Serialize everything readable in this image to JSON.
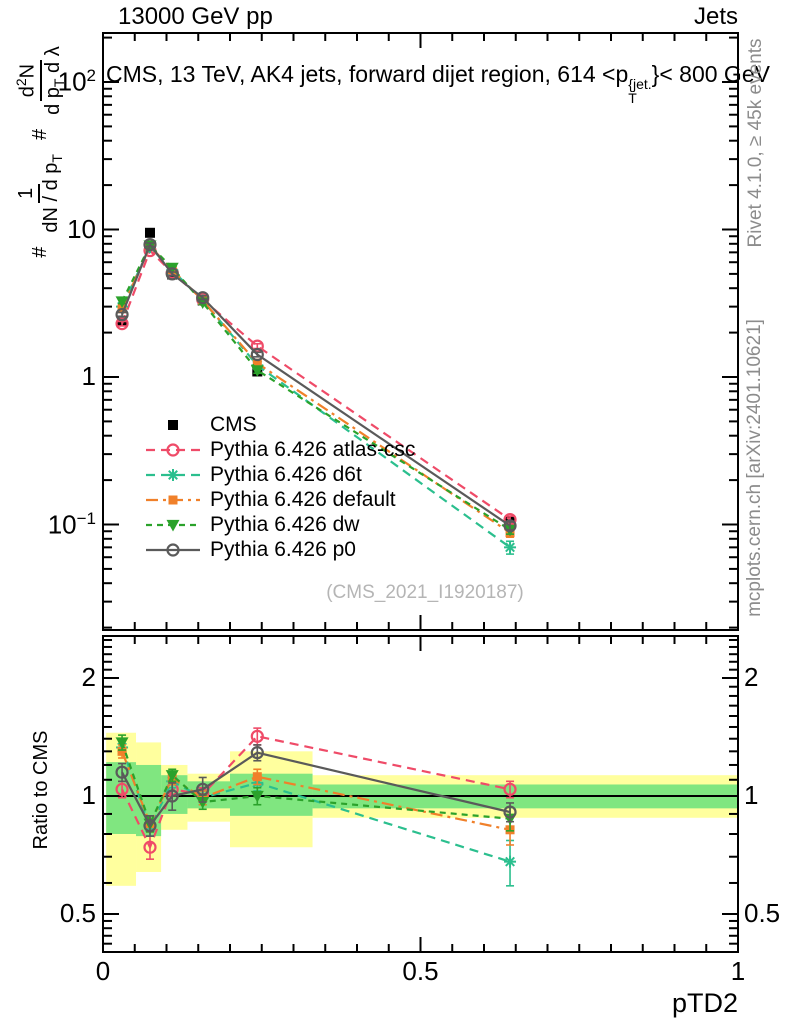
{
  "header": {
    "left_title": "13000 GeV pp",
    "right_title": "Jets"
  },
  "panel_title": {
    "prefix": "CMS, 13 TeV, AK4 jets, forward dijet region, 614 <p",
    "sup": "{jet.",
    "sub": "T",
    "suffix": "}< 800 GeV"
  },
  "watermark": "(CMS_2021_I1920187)",
  "side_notes": {
    "top": "Rivet 4.1.0, ≥ 45k events",
    "bottom": "mcplots.cern.ch [arXiv:2401.10621]"
  },
  "y_main_label": {
    "hash1": "#",
    "frac1": {
      "num": "1",
      "den_base": "dN / d p",
      "den_sub": "T"
    },
    "hash2": "#",
    "frac2": {
      "num_base": "d",
      "num_sup": "2",
      "num_end": "N",
      "den_base": "d p",
      "den_sub": "T",
      "den_end": " d λ"
    }
  },
  "axes": {
    "x": {
      "label": "pTD2",
      "ticks": [
        {
          "label": "0",
          "value": 0
        },
        {
          "label": "0.5",
          "value": 0.5
        },
        {
          "label": "1",
          "value": 1
        }
      ],
      "minor_step": 0.05,
      "range": [
        0,
        1
      ]
    },
    "y_main": {
      "log": true,
      "range": [
        0.019,
        213
      ],
      "ticks": [
        {
          "base": "10",
          "sup": "2",
          "value": 100
        },
        {
          "base": "10",
          "sup": "",
          "value": 10
        },
        {
          "base": "1",
          "sup": "",
          "value": 1
        },
        {
          "base": "10",
          "sup": "−1",
          "value": 0.1
        }
      ]
    },
    "y_ratio": {
      "label": "Ratio to CMS",
      "log": true,
      "range": [
        0.4,
        2.62
      ],
      "ticks": [
        {
          "label": "2",
          "value": 2
        },
        {
          "label": "1",
          "value": 1
        },
        {
          "label": "0.5",
          "value": 0.5
        }
      ],
      "minor_ticks": [
        0.42,
        0.44,
        0.46,
        0.48,
        0.6,
        0.7,
        0.8,
        0.9,
        1.1,
        1.2,
        1.3,
        1.4,
        1.5,
        1.6,
        1.7,
        1.8,
        1.9,
        2.1,
        2.2,
        2.3,
        2.4,
        2.5
      ]
    }
  },
  "chart_data": {
    "type": "line",
    "title": "CMS, 13 TeV, AK4 jets, forward dijet region, 614 <pT{jet.}< 800 GeV",
    "xlabel": "pTD2",
    "ylabel": "# 1/(dN/dpT) # d2N/(dpT dλ)",
    "ratio_ylabel": "Ratio to CMS",
    "xlim": [
      0,
      1
    ],
    "main_ylim": [
      0.019,
      213
    ],
    "ratio_ylim": [
      0.4,
      2.62
    ],
    "legend_position": "middle-left",
    "x": [
      0.03,
      0.074,
      0.109,
      0.157,
      0.243,
      0.641
    ],
    "series": [
      {
        "name": "CMS",
        "color": "#000000",
        "marker": "square",
        "marker_size": 5,
        "line_style": "none",
        "main_values": [
          2.41,
          9.5,
          4.95,
          3.3,
          1.09,
          0.105
        ],
        "main_err": [
          0.07,
          0.25,
          0.15,
          0.1,
          0.04,
          0.005
        ]
      },
      {
        "name": "Pythia 6.426 atlas-csc",
        "color": "#ef4b68",
        "marker": "circle",
        "marker_size": 5.5,
        "line_style": "dashed",
        "main_values": [
          2.3,
          7.2,
          5.1,
          3.35,
          1.62,
          0.108
        ],
        "main_err": [
          0.08,
          0.2,
          0.15,
          0.1,
          0.06,
          0.006
        ],
        "ratio_values": [
          1.04,
          0.74,
          1.04,
          1.01,
          1.42,
          1.04
        ],
        "ratio_err": [
          0.05,
          0.05,
          0.04,
          0.04,
          0.07,
          0.05
        ]
      },
      {
        "name": "Pythia 6.426 d6t",
        "color": "#2bbf8e",
        "marker": "asterisk",
        "marker_size": 6,
        "line_style": "dashed",
        "main_values": [
          3.0,
          7.6,
          5.3,
          3.3,
          1.2,
          0.07
        ],
        "main_err": [
          0.1,
          0.2,
          0.15,
          0.1,
          0.05,
          0.007
        ],
        "ratio_values": [
          1.33,
          0.83,
          1.09,
          0.99,
          1.08,
          0.68
        ],
        "ratio_err": [
          0.05,
          0.04,
          0.04,
          0.04,
          0.05,
          0.09
        ]
      },
      {
        "name": "Pythia 6.426 default",
        "color": "#f0802a",
        "marker": "square",
        "marker_size": 4.5,
        "line_style": "dashdot",
        "main_values": [
          2.9,
          7.7,
          5.35,
          3.3,
          1.24,
          0.088
        ],
        "main_err": [
          0.1,
          0.2,
          0.15,
          0.1,
          0.05,
          0.006
        ],
        "ratio_values": [
          1.3,
          0.85,
          1.11,
          0.99,
          1.12,
          0.82
        ],
        "ratio_err": [
          0.05,
          0.04,
          0.04,
          0.04,
          0.05,
          0.07
        ]
      },
      {
        "name": "Pythia 6.426 dw",
        "color": "#2ba22b",
        "marker": "triangle-down",
        "marker_size": 6.5,
        "line_style": "dashed-short",
        "main_values": [
          3.25,
          7.8,
          5.5,
          3.2,
          1.11,
          0.092
        ],
        "main_err": [
          0.11,
          0.2,
          0.15,
          0.1,
          0.05,
          0.006
        ],
        "ratio_values": [
          1.37,
          0.85,
          1.13,
          0.965,
          1.0,
          0.875
        ],
        "ratio_err": [
          0.06,
          0.04,
          0.04,
          0.04,
          0.05,
          0.06
        ]
      },
      {
        "name": "Pythia 6.426 p0",
        "color": "#5a5a5a",
        "marker": "circle",
        "marker_size": 5.5,
        "line_style": "solid",
        "main_values": [
          2.65,
          7.9,
          5.0,
          3.45,
          1.42,
          0.098
        ],
        "main_err": [
          0.09,
          0.2,
          0.15,
          0.1,
          0.05,
          0.006
        ],
        "ratio_values": [
          1.15,
          0.84,
          1.0,
          1.04,
          1.29,
          0.91
        ],
        "ratio_err": [
          0.06,
          0.05,
          0.08,
          0.075,
          0.06,
          0.05
        ]
      }
    ],
    "cms_band": {
      "bin_edges": [
        0.005,
        0.052,
        0.0915,
        0.133,
        0.2,
        0.33,
        1.0
      ],
      "yellow": [
        [
          0.59,
          1.45
        ],
        [
          0.64,
          1.37
        ],
        [
          0.82,
          1.2
        ],
        [
          0.86,
          1.14
        ],
        [
          0.74,
          1.3
        ],
        [
          0.88,
          1.13
        ]
      ],
      "green": [
        [
          0.8,
          1.22
        ],
        [
          0.79,
          1.2
        ],
        [
          0.9,
          1.13
        ],
        [
          0.93,
          1.09
        ],
        [
          0.89,
          1.14
        ],
        [
          0.93,
          1.07
        ]
      ],
      "yellow_color": "#ffff9e",
      "green_color": "#80e680"
    }
  }
}
